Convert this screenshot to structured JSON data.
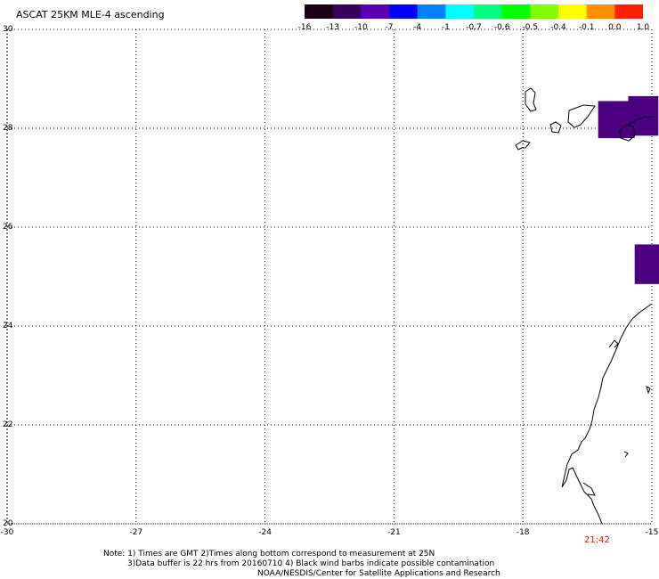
{
  "title": "ASCAT 25KM MLE-4 ascending",
  "colorbar": {
    "colors": [
      "#1a0016",
      "#3a0060",
      "#5a00b0",
      "#0000ff",
      "#0080ff",
      "#00ffff",
      "#00ff80",
      "#00ff00",
      "#80ff00",
      "#ffff00",
      "#ff9000",
      "#ff2000"
    ],
    "tick_labels": [
      "-16",
      "-13",
      "-10",
      "-7",
      "-4",
      "-1",
      "-0.7",
      "-0.6",
      "-0.5",
      "-0.4",
      "-0.1",
      "0.0",
      "1.0"
    ]
  },
  "map": {
    "lon_labels": [
      "-30",
      "-27",
      "-24",
      "-21",
      "-18",
      "-15"
    ],
    "lat_labels": [
      "30",
      "28",
      "26",
      "24",
      "22",
      "20"
    ],
    "lon_range": [
      -30,
      -15
    ],
    "lat_range": [
      20,
      30
    ],
    "grid": "dotted",
    "cell_color": "#4b0082",
    "cells": [
      {
        "lon": [
          -16.25,
          -15.4
        ],
        "lat": [
          27.8,
          28.55
        ]
      },
      {
        "lon": [
          -15.55,
          -14.85
        ],
        "lat": [
          27.85,
          28.65
        ]
      },
      {
        "lon": [
          -15.4,
          -14.55
        ],
        "lat": [
          24.85,
          25.65
        ]
      }
    ]
  },
  "time_label": "21:42",
  "notes": [
    "Note: 1) Times are GMT 2)Times along bottom correspond to measurement at 25N",
    "3)Data buffer is 22 hrs from 20160710 4) Black wind barbs indicate possible contamination",
    "NOAA/NESDIS/Center for Satellite Applications and Research"
  ]
}
